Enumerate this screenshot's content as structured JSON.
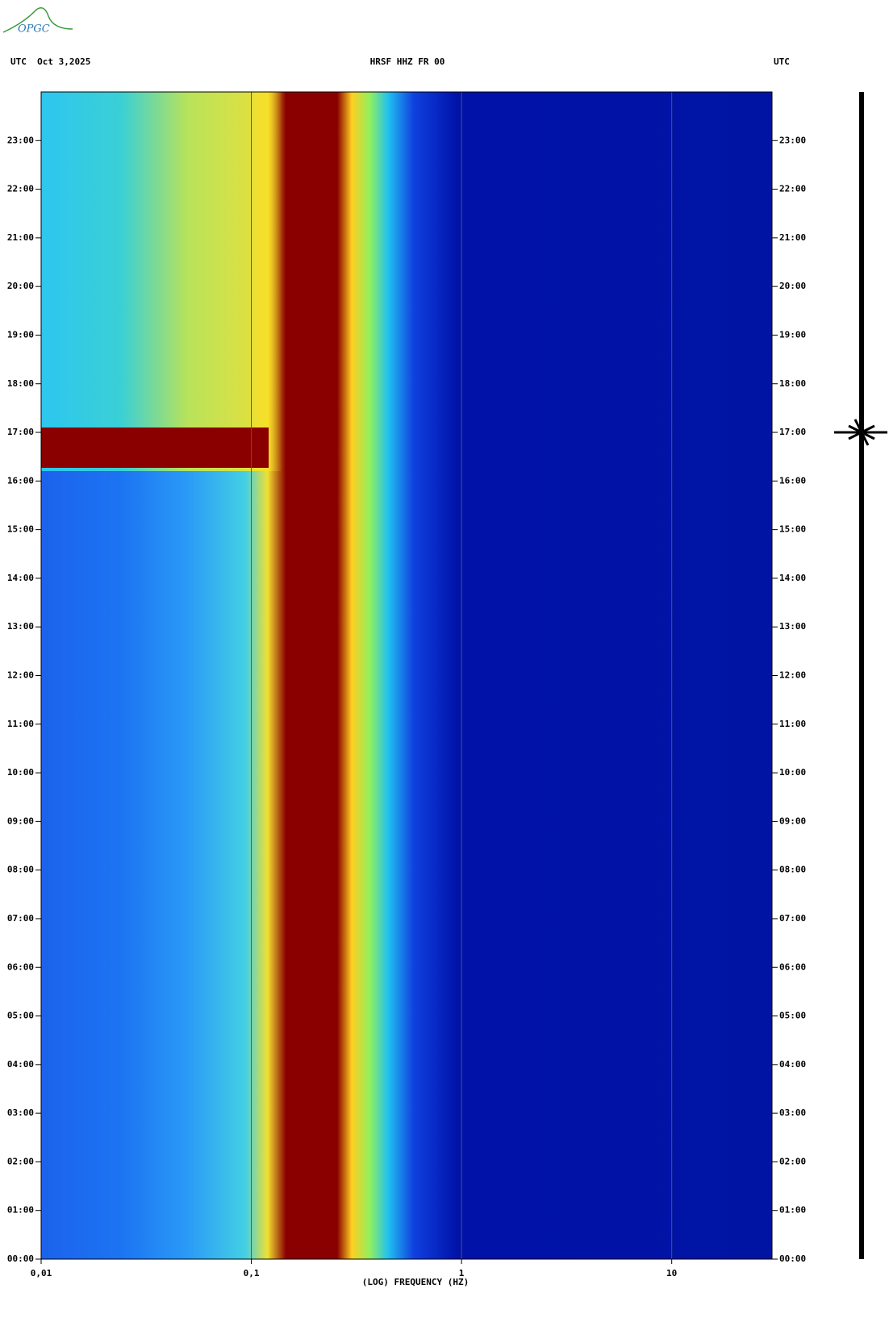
{
  "chart_data": {
    "type": "spectrogram",
    "logo": "OPGC",
    "date_label": "UTC  Oct 3,2025",
    "title": "HRSF HHZ FR 00",
    "right_label": "UTC",
    "xlabel": "(LOG) FREQUENCY (HZ)",
    "xscale": "log",
    "xlim": [
      0.01,
      30
    ],
    "xticks": [
      {
        "value": 0.01,
        "label": "0,01"
      },
      {
        "value": 0.1,
        "label": "0,1"
      },
      1,
      10
    ],
    "ylim": [
      0,
      24
    ],
    "yticks": [
      {
        "value": 0,
        "label": "00:00"
      },
      {
        "value": 1,
        "label": "01:00"
      },
      {
        "value": 2,
        "label": "02:00"
      },
      {
        "value": 3,
        "label": "03:00"
      },
      {
        "value": 4,
        "label": "04:00"
      },
      {
        "value": 5,
        "label": "05:00"
      },
      {
        "value": 6,
        "label": "06:00"
      },
      {
        "value": 7,
        "label": "07:00"
      },
      {
        "value": 8,
        "label": "08:00"
      },
      {
        "value": 9,
        "label": "09:00"
      },
      {
        "value": 10,
        "label": "10:00"
      },
      {
        "value": 11,
        "label": "11:00"
      },
      {
        "value": 12,
        "label": "12:00"
      },
      {
        "value": 13,
        "label": "13:00"
      },
      {
        "value": 14,
        "label": "14:00"
      },
      {
        "value": 15,
        "label": "15:00"
      },
      {
        "value": 16,
        "label": "16:00"
      },
      {
        "value": 17,
        "label": "17:00"
      },
      {
        "value": 18,
        "label": "18:00"
      },
      {
        "value": 19,
        "label": "19:00"
      },
      {
        "value": 20,
        "label": "20:00"
      },
      {
        "value": 21,
        "label": "21:00"
      },
      {
        "value": 22,
        "label": "22:00"
      },
      {
        "value": 23,
        "label": "23:00"
      }
    ],
    "grid": true
  }
}
